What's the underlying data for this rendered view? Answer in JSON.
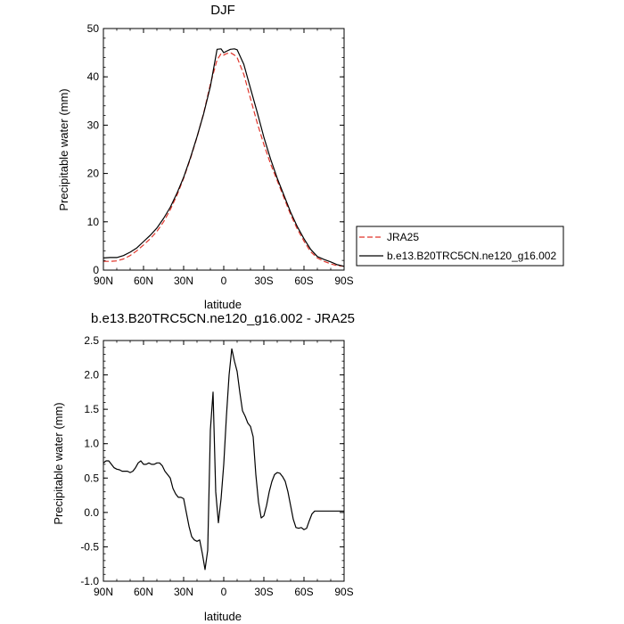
{
  "chart_data": [
    {
      "type": "line",
      "title": "DJF",
      "xlabel": "latitude",
      "ylabel": "Precipitable water (mm)",
      "xlim": [
        90,
        -90
      ],
      "ylim": [
        0,
        50
      ],
      "x_ticks": [
        {
          "value": 90,
          "label": "90N"
        },
        {
          "value": 60,
          "label": "60N"
        },
        {
          "value": 30,
          "label": "30N"
        },
        {
          "value": 0,
          "label": "0"
        },
        {
          "value": -30,
          "label": "30S"
        },
        {
          "value": -60,
          "label": "60S"
        },
        {
          "value": -90,
          "label": "90S"
        }
      ],
      "y_ticks": [
        0,
        10,
        20,
        30,
        40,
        50
      ],
      "legend_position": "right",
      "series": [
        {
          "name": "JRA25",
          "color": "#e0352b",
          "style": "dashed",
          "x": [
            90,
            85,
            80,
            75,
            70,
            65,
            60,
            55,
            50,
            45,
            40,
            35,
            30,
            25,
            20,
            15,
            10,
            5,
            2,
            0,
            -2,
            -5,
            -8,
            -10,
            -15,
            -20,
            -25,
            -30,
            -35,
            -40,
            -45,
            -50,
            -55,
            -60,
            -65,
            -70,
            -75,
            -80,
            -85,
            -90
          ],
          "y": [
            1.8,
            1.8,
            1.9,
            2.3,
            3.0,
            4.0,
            5.2,
            6.5,
            8.0,
            10.0,
            12.5,
            15.5,
            19.0,
            23.0,
            27.5,
            32.5,
            38.5,
            43.5,
            44.8,
            44.5,
            44.8,
            45.0,
            44.5,
            44.0,
            40.5,
            35.5,
            30.5,
            26.0,
            22.0,
            18.5,
            15.0,
            11.5,
            8.5,
            6.0,
            3.8,
            2.5,
            1.8,
            1.3,
            0.9,
            0.8
          ]
        },
        {
          "name": "b.e13.B20TRC5CN.ne120_g16.002",
          "color": "#000000",
          "style": "solid",
          "x": [
            90,
            85,
            80,
            75,
            70,
            65,
            60,
            55,
            50,
            45,
            40,
            35,
            30,
            25,
            20,
            15,
            10,
            5,
            2,
            0,
            -2,
            -5,
            -8,
            -10,
            -15,
            -20,
            -25,
            -30,
            -35,
            -40,
            -45,
            -50,
            -55,
            -60,
            -65,
            -70,
            -75,
            -80,
            -85,
            -90
          ],
          "y": [
            2.5,
            2.6,
            2.6,
            3.0,
            3.7,
            4.6,
            5.9,
            7.2,
            8.7,
            10.7,
            13.0,
            15.9,
            19.2,
            23.2,
            27.6,
            32.4,
            38.0,
            45.7,
            45.8,
            45.0,
            45.3,
            45.7,
            45.8,
            45.6,
            42.6,
            37.6,
            32.7,
            27.5,
            23.0,
            19.0,
            15.5,
            12.0,
            9.0,
            6.5,
            4.3,
            2.8,
            2.2,
            1.7,
            1.1,
            0.8
          ]
        }
      ]
    },
    {
      "type": "line",
      "title": "b.e13.B20TRC5CN.ne120_g16.002 - JRA25",
      "xlabel": "latitude",
      "ylabel": "Precipitable water (mm)",
      "xlim": [
        90,
        -90
      ],
      "ylim": [
        -1.0,
        2.5
      ],
      "x_ticks": [
        {
          "value": 90,
          "label": "90N"
        },
        {
          "value": 60,
          "label": "60N"
        },
        {
          "value": 30,
          "label": "30N"
        },
        {
          "value": 0,
          "label": "0"
        },
        {
          "value": -30,
          "label": "30S"
        },
        {
          "value": -60,
          "label": "60S"
        },
        {
          "value": -90,
          "label": "90S"
        }
      ],
      "y_ticks": [
        {
          "value": -1.0,
          "label": "-1.0"
        },
        {
          "value": -0.5,
          "label": "-0.5"
        },
        {
          "value": 0.0,
          "label": "0.0"
        },
        {
          "value": 0.5,
          "label": "0.5"
        },
        {
          "value": 1.0,
          "label": "1.0"
        },
        {
          "value": 1.5,
          "label": "1.5"
        },
        {
          "value": 2.0,
          "label": "2.0"
        },
        {
          "value": 2.5,
          "label": "2.5"
        }
      ],
      "series": [
        {
          "color": "#000000",
          "style": "solid",
          "x": [
            90,
            88,
            86,
            84,
            82,
            80,
            78,
            76,
            74,
            72,
            70,
            68,
            66,
            64,
            62,
            60,
            58,
            56,
            54,
            52,
            50,
            48,
            46,
            44,
            42,
            40,
            38,
            36,
            34,
            32,
            30,
            28,
            26,
            24,
            22,
            20,
            18,
            16,
            14,
            12,
            10,
            8,
            6,
            4,
            2,
            0,
            -2,
            -4,
            -6,
            -8,
            -10,
            -12,
            -14,
            -16,
            -18,
            -20,
            -22,
            -24,
            -26,
            -28,
            -30,
            -32,
            -34,
            -36,
            -38,
            -40,
            -42,
            -44,
            -46,
            -48,
            -50,
            -52,
            -54,
            -56,
            -58,
            -60,
            -62,
            -64,
            -66,
            -68,
            -70,
            -72,
            -74,
            -76,
            -78,
            -80,
            -82,
            -84,
            -86,
            -88,
            -90
          ],
          "y": [
            0.72,
            0.75,
            0.75,
            0.7,
            0.65,
            0.63,
            0.62,
            0.6,
            0.6,
            0.6,
            0.58,
            0.6,
            0.65,
            0.72,
            0.75,
            0.7,
            0.7,
            0.72,
            0.7,
            0.7,
            0.72,
            0.72,
            0.68,
            0.6,
            0.55,
            0.5,
            0.35,
            0.27,
            0.22,
            0.22,
            0.2,
            0.0,
            -0.2,
            -0.35,
            -0.4,
            -0.42,
            -0.4,
            -0.6,
            -0.83,
            -0.55,
            1.2,
            1.75,
            0.3,
            -0.15,
            0.2,
            0.7,
            1.4,
            2.0,
            2.38,
            2.2,
            2.05,
            1.75,
            1.48,
            1.4,
            1.3,
            1.25,
            1.1,
            0.55,
            0.15,
            -0.08,
            -0.05,
            0.1,
            0.3,
            0.45,
            0.55,
            0.58,
            0.57,
            0.52,
            0.45,
            0.3,
            0.1,
            -0.1,
            -0.22,
            -0.23,
            -0.22,
            -0.25,
            -0.23,
            -0.12,
            -0.02,
            0.02,
            0.02,
            0.02,
            0.02,
            0.02,
            0.02,
            0.02,
            0.02,
            0.02,
            0.02,
            0.02,
            0.02
          ]
        }
      ]
    }
  ]
}
